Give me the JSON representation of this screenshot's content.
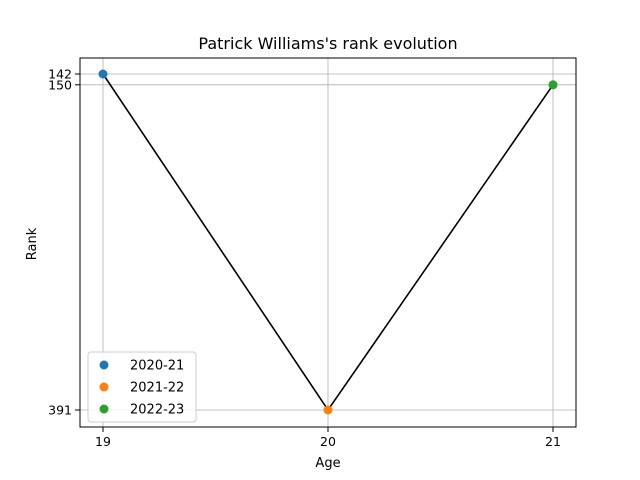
{
  "chart_data": {
    "type": "line",
    "title": "Patrick Williams's rank evolution",
    "xlabel": "Age",
    "ylabel": "Rank",
    "x_ticks": [
      19,
      20,
      21
    ],
    "y_ticks": [
      142,
      150,
      391
    ],
    "y_inverted": true,
    "grid": true,
    "legend_position": "lower-left",
    "line_color": "#000000",
    "points": [
      {
        "season": "2020-21",
        "age": 19,
        "rank": 142,
        "color": "#1f77b4"
      },
      {
        "season": "2021-22",
        "age": 20,
        "rank": 391,
        "color": "#ff7f0e"
      },
      {
        "season": "2022-23",
        "age": 21,
        "rank": 150,
        "color": "#2ca02c"
      }
    ]
  }
}
